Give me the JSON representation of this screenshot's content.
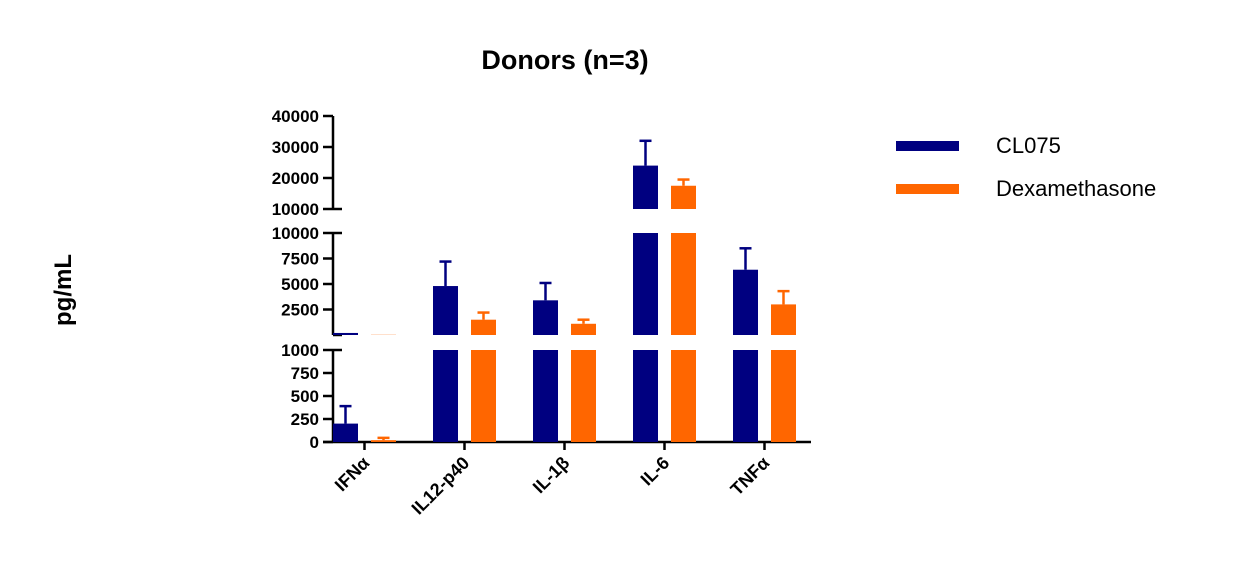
{
  "chart_data": {
    "type": "bar",
    "title": "Donors (n=3)",
    "ylabel": "pg/mL",
    "xlabel": "",
    "categories": [
      "IFNα",
      "IL12-p40",
      "IL-1β",
      "IL-6",
      "TNFα"
    ],
    "series": [
      {
        "name": "CL075",
        "color": "#000080",
        "values": [
          200,
          4800,
          3400,
          24000,
          6400
        ],
        "errors": [
          190,
          2400,
          1700,
          8000,
          2100
        ]
      },
      {
        "name": "Dexamethasone",
        "color": "#FF6600",
        "values": [
          20,
          1500,
          1100,
          17500,
          3000
        ],
        "errors": [
          25,
          700,
          400,
          2000,
          1300
        ]
      }
    ],
    "y_axis_segments": [
      {
        "range": [
          0,
          1000
        ],
        "ticks": [
          0,
          250,
          500,
          750,
          1000
        ],
        "tick_labels": [
          "0",
          "250",
          "500",
          "750",
          "1000"
        ]
      },
      {
        "range": [
          0,
          10000
        ],
        "ticks": [
          2500,
          5000,
          7500,
          10000
        ],
        "tick_labels": [
          "2500",
          "5000",
          "7500",
          "10000"
        ]
      },
      {
        "range": [
          10000,
          40000
        ],
        "ticks": [
          10000,
          20000,
          30000,
          40000
        ],
        "tick_labels": [
          "10000",
          "20000",
          "30000",
          "40000"
        ]
      }
    ],
    "error_bars": "upper",
    "legend_position": "right",
    "grid": false
  }
}
